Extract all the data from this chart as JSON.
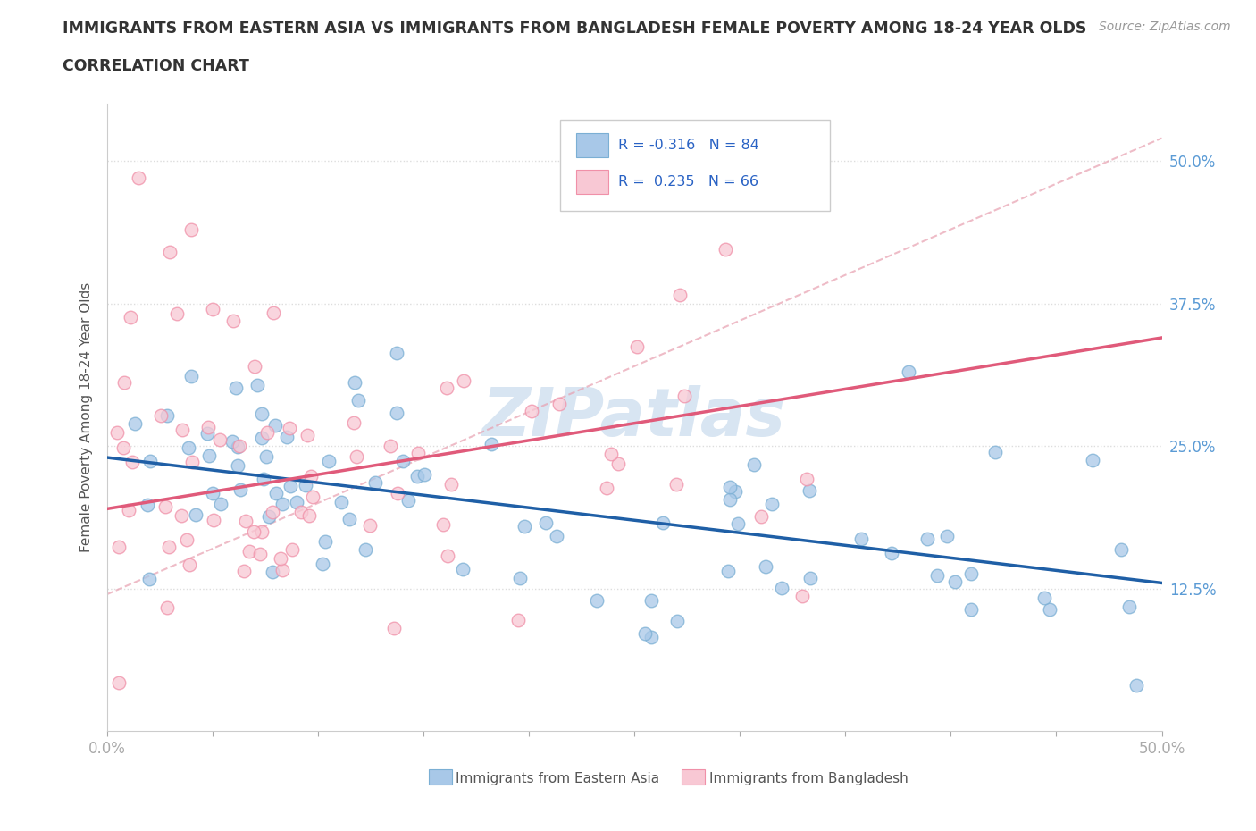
{
  "title_line1": "IMMIGRANTS FROM EASTERN ASIA VS IMMIGRANTS FROM BANGLADESH FEMALE POVERTY AMONG 18-24 YEAR OLDS",
  "title_line2": "CORRELATION CHART",
  "source_text": "Source: ZipAtlas.com",
  "ylabel": "Female Poverty Among 18-24 Year Olds",
  "xlim": [
    0.0,
    0.5
  ],
  "ylim": [
    0.0,
    0.55
  ],
  "ytick_positions": [
    0.125,
    0.25,
    0.375,
    0.5
  ],
  "ytick_labels": [
    "12.5%",
    "25.0%",
    "37.5%",
    "50.0%"
  ],
  "color_eastern_asia_fill": "#a8c8e8",
  "color_eastern_asia_edge": "#7bafd4",
  "color_bangladesh_fill": "#f8c8d4",
  "color_bangladesh_edge": "#f090a8",
  "color_trendline_eastern_asia": "#1f5fa6",
  "color_trendline_bangladesh": "#e05a7a",
  "color_dashed": "#e8a0b0",
  "r_eastern_asia": -0.316,
  "n_eastern_asia": 84,
  "r_bangladesh": 0.235,
  "n_bangladesh": 66,
  "watermark": "ZIPatlas",
  "background_color": "#ffffff",
  "grid_color": "#dddddd",
  "tick_color": "#5b9bd5",
  "legend_text_color": "#2962c4",
  "title_color": "#333333",
  "source_color": "#999999",
  "ylabel_color": "#555555"
}
